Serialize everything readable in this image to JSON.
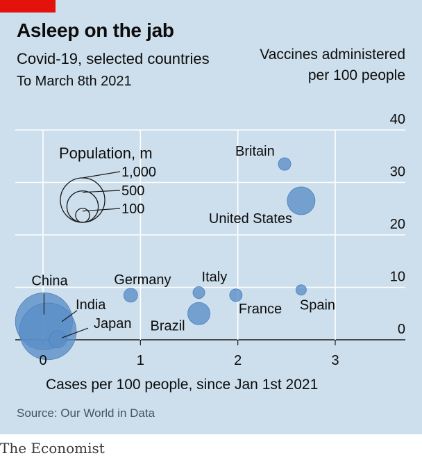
{
  "header": {
    "title": "Asleep on the jab",
    "subtitle": "Covid-19, selected countries",
    "dateline": "To March 8th 2021"
  },
  "footer": {
    "source": "Source: Our World in Data",
    "brand": "The Economist"
  },
  "colors": {
    "background": "#cddfec",
    "bubble": "#5b8ec8",
    "accent": "#e3120b"
  },
  "chart_data": {
    "type": "scatter",
    "title": "Asleep on the jab",
    "xlabel": "Cases per 100 people, since Jan 1st 2021",
    "ylabel": "Vaccines administered per 100 people",
    "xlim": [
      0,
      3
    ],
    "ylim": [
      0,
      40
    ],
    "x_ticks": [
      "0",
      "1",
      "2",
      "3"
    ],
    "y_ticks": [
      "0",
      "10",
      "20",
      "30",
      "40"
    ],
    "grid": true,
    "size_legend": {
      "title": "Population, m",
      "values": [
        1000,
        500,
        100
      ],
      "labels": [
        "1,000",
        "500",
        "100"
      ],
      "placement": "top-left"
    },
    "points": [
      {
        "name": "China",
        "x": 0.01,
        "y": 3.5,
        "population_m": 1400
      },
      {
        "name": "India",
        "x": 0.05,
        "y": 1.6,
        "population_m": 1380
      },
      {
        "name": "Japan",
        "x": 0.15,
        "y": 0.1,
        "population_m": 126
      },
      {
        "name": "Brazil",
        "x": 1.6,
        "y": 5.0,
        "population_m": 212
      },
      {
        "name": "Germany",
        "x": 0.9,
        "y": 8.5,
        "population_m": 83
      },
      {
        "name": "Italy",
        "x": 1.6,
        "y": 9.0,
        "population_m": 60
      },
      {
        "name": "France",
        "x": 1.98,
        "y": 8.5,
        "population_m": 67
      },
      {
        "name": "Spain",
        "x": 2.65,
        "y": 9.5,
        "population_m": 47
      },
      {
        "name": "Britain",
        "x": 2.48,
        "y": 33.5,
        "population_m": 67
      },
      {
        "name": "United States",
        "x": 2.65,
        "y": 26.5,
        "population_m": 331
      }
    ]
  }
}
